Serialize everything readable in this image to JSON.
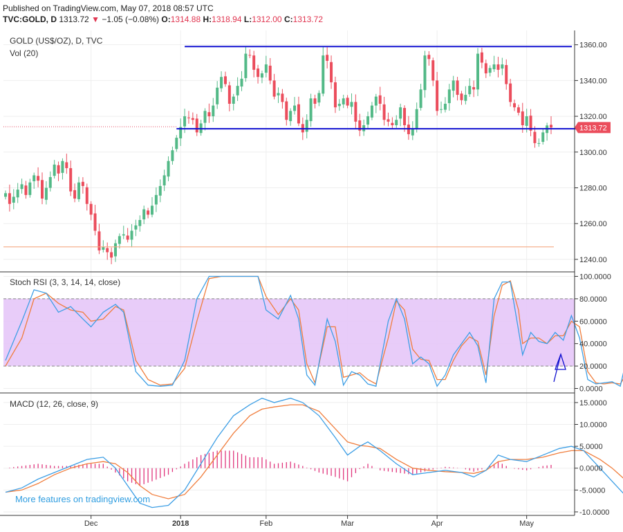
{
  "header": {
    "published": "Published on TradingView.com, May 07, 2018 08:57 UTC",
    "symbol": "TVC:GOLD, D",
    "last": "1313.72",
    "change": "−1.05 (−0.08%)",
    "o_label": "O:",
    "o": "1314.88",
    "h_label": "H:",
    "h": "1318.94",
    "l_label": "L:",
    "l": "1312.00",
    "c_label": "C:",
    "c": "1313.72"
  },
  "panes": {
    "price_title": "GOLD (US$/OZ), D, TVC",
    "volume_title": "Vol (20)",
    "stoch_title": "Stoch RSI (3, 3, 14, 14, close)",
    "macd_title": "MACD (12, 26, close, 9)"
  },
  "footer": "More features on tradingview.com",
  "colors": {
    "up": "#53b987",
    "down": "#eb4d5c",
    "trendline": "#1010d0",
    "stoch_k": "#3c9ee5",
    "stoch_d": "#f07d3c",
    "stoch_band": "#e6c6f8",
    "macd": "#3c9ee5",
    "signal": "#f07d3c",
    "hist": "#e0347c"
  },
  "chart_data": [
    {
      "type": "candlestick",
      "title": "GOLD (US$/OZ), D, TVC",
      "y_ticks": [
        "1360.00",
        "1340.00",
        "1320.00",
        "1300.00",
        "1280.00",
        "1260.00",
        "1240.00"
      ],
      "ylim": [
        1233,
        1368
      ],
      "last_price_label": "1313.72",
      "x_ticks": [
        "Dec",
        "2018",
        "Feb",
        "Mar",
        "Apr",
        "May"
      ],
      "closes": [
        1277,
        1271,
        1275,
        1279,
        1282,
        1276,
        1283,
        1287,
        1284,
        1274,
        1280,
        1286,
        1293,
        1288,
        1295,
        1291,
        1278,
        1274,
        1283,
        1281,
        1271,
        1265,
        1256,
        1245,
        1247,
        1244,
        1241,
        1249,
        1253,
        1254,
        1251,
        1256,
        1259,
        1262,
        1268,
        1265,
        1270,
        1276,
        1281,
        1287,
        1295,
        1301,
        1308,
        1314,
        1320,
        1319,
        1318,
        1311,
        1316,
        1323,
        1320,
        1326,
        1336,
        1342,
        1338,
        1327,
        1331,
        1337,
        1341,
        1355,
        1354,
        1346,
        1342,
        1344,
        1349,
        1340,
        1331,
        1333,
        1328,
        1318,
        1323,
        1326,
        1316,
        1311,
        1318,
        1330,
        1327,
        1333,
        1354,
        1351,
        1339,
        1325,
        1327,
        1330,
        1326,
        1328,
        1317,
        1312,
        1315,
        1320,
        1326,
        1331,
        1327,
        1318,
        1317,
        1315,
        1318,
        1325,
        1315,
        1310,
        1313,
        1324,
        1335,
        1354,
        1352,
        1340,
        1323,
        1324,
        1327,
        1335,
        1340,
        1332,
        1329,
        1332,
        1337,
        1335,
        1355,
        1350,
        1344,
        1347,
        1349,
        1346,
        1349,
        1338,
        1328,
        1325,
        1322,
        1315,
        1320,
        1312,
        1305,
        1305,
        1311,
        1314.88,
        1313.72
      ],
      "upper_resistance": 1359,
      "lower_support": 1313,
      "reference_level": 1247
    },
    {
      "type": "line",
      "title": "Stoch RSI (3, 3, 14, 14, close)",
      "y_ticks": [
        "100.0000",
        "80.0000",
        "60.0000",
        "40.0000",
        "20.0000",
        "0.0000"
      ],
      "ylim": [
        -4,
        104
      ],
      "band": [
        20,
        80
      ],
      "series": [
        {
          "name": "K",
          "points": [
            [
              0,
              25
            ],
            [
              4,
              60
            ],
            [
              7,
              88
            ],
            [
              10,
              85
            ],
            [
              13,
              68
            ],
            [
              16,
              73
            ],
            [
              19,
              62
            ],
            [
              21,
              55
            ],
            [
              24,
              68
            ],
            [
              27,
              75
            ],
            [
              29,
              68
            ],
            [
              32,
              15
            ],
            [
              35,
              3
            ],
            [
              38,
              2
            ],
            [
              41,
              3
            ],
            [
              44,
              25
            ],
            [
              47,
              80
            ],
            [
              50,
              100
            ],
            [
              53,
              100
            ],
            [
              56,
              100
            ],
            [
              59,
              100
            ],
            [
              62,
              100
            ],
            [
              64,
              70
            ],
            [
              67,
              62
            ],
            [
              70,
              83
            ],
            [
              72,
              62
            ],
            [
              74,
              12
            ],
            [
              76,
              3
            ],
            [
              79,
              62
            ],
            [
              81,
              42
            ],
            [
              83,
              3
            ],
            [
              85,
              15
            ],
            [
              87,
              12
            ],
            [
              89,
              4
            ],
            [
              91,
              2
            ],
            [
              94,
              60
            ],
            [
              96,
              80
            ],
            [
              98,
              62
            ],
            [
              100,
              22
            ],
            [
              102,
              28
            ],
            [
              104,
              22
            ],
            [
              106,
              2
            ],
            [
              108,
              12
            ],
            [
              110,
              30
            ],
            [
              112,
              40
            ],
            [
              114,
              50
            ],
            [
              116,
              38
            ],
            [
              118,
              5
            ],
            [
              120,
              80
            ],
            [
              122,
              95
            ],
            [
              124,
              95
            ],
            [
              126,
              52
            ],
            [
              127,
              30
            ],
            [
              129,
              50
            ],
            [
              131,
              42
            ],
            [
              133,
              40
            ],
            [
              135,
              50
            ],
            [
              137,
              43
            ],
            [
              139,
              65
            ],
            [
              141,
              45
            ],
            [
              143,
              8
            ],
            [
              145,
              4
            ],
            [
              147,
              5
            ],
            [
              149,
              6
            ],
            [
              151,
              2
            ],
            [
              152,
              18
            ],
            [
              154,
              30
            ]
          ]
        },
        {
          "name": "D",
          "points": [
            [
              0,
              20
            ],
            [
              4,
              45
            ],
            [
              7,
              80
            ],
            [
              10,
              85
            ],
            [
              13,
              76
            ],
            [
              16,
              70
            ],
            [
              19,
              68
            ],
            [
              21,
              60
            ],
            [
              24,
              62
            ],
            [
              27,
              73
            ],
            [
              29,
              70
            ],
            [
              32,
              25
            ],
            [
              35,
              8
            ],
            [
              38,
              3
            ],
            [
              41,
              4
            ],
            [
              44,
              18
            ],
            [
              47,
              60
            ],
            [
              50,
              98
            ],
            [
              53,
              100
            ],
            [
              56,
              100
            ],
            [
              59,
              100
            ],
            [
              62,
              100
            ],
            [
              64,
              82
            ],
            [
              67,
              66
            ],
            [
              70,
              80
            ],
            [
              72,
              70
            ],
            [
              74,
              22
            ],
            [
              76,
              5
            ],
            [
              79,
              55
            ],
            [
              81,
              55
            ],
            [
              83,
              10
            ],
            [
              85,
              12
            ],
            [
              87,
              14
            ],
            [
              89,
              8
            ],
            [
              91,
              4
            ],
            [
              94,
              45
            ],
            [
              96,
              78
            ],
            [
              98,
              70
            ],
            [
              100,
              35
            ],
            [
              102,
              26
            ],
            [
              104,
              25
            ],
            [
              106,
              8
            ],
            [
              108,
              8
            ],
            [
              110,
              25
            ],
            [
              112,
              38
            ],
            [
              114,
              46
            ],
            [
              116,
              42
            ],
            [
              118,
              12
            ],
            [
              120,
              65
            ],
            [
              122,
              92
            ],
            [
              124,
              96
            ],
            [
              126,
              70
            ],
            [
              127,
              40
            ],
            [
              129,
              45
            ],
            [
              131,
              45
            ],
            [
              133,
              40
            ],
            [
              135,
              47
            ],
            [
              137,
              47
            ],
            [
              139,
              60
            ],
            [
              141,
              55
            ],
            [
              143,
              15
            ],
            [
              145,
              5
            ],
            [
              147,
              4
            ],
            [
              149,
              5
            ],
            [
              151,
              4
            ],
            [
              152,
              10
            ],
            [
              154,
              22
            ]
          ]
        }
      ]
    },
    {
      "type": "line+bar",
      "title": "MACD (12, 26, close, 9)",
      "y_ticks": [
        "15.0000",
        "10.0000",
        "5.0000",
        "0.0000",
        "-5.0000",
        "-10.0000"
      ],
      "ylim": [
        -10.8,
        17.2
      ],
      "series": [
        {
          "name": "MACD",
          "points": [
            [
              0,
              -5.5
            ],
            [
              4,
              -4.5
            ],
            [
              8,
              -2.5
            ],
            [
              12,
              -1
            ],
            [
              16,
              0.5
            ],
            [
              20,
              2
            ],
            [
              24,
              2.5
            ],
            [
              27,
              0
            ],
            [
              30,
              -4
            ],
            [
              33,
              -8
            ],
            [
              36,
              -9
            ],
            [
              40,
              -8.5
            ],
            [
              44,
              -5
            ],
            [
              48,
              1
            ],
            [
              52,
              7
            ],
            [
              56,
              12
            ],
            [
              60,
              14.5
            ],
            [
              63,
              16
            ],
            [
              66,
              15
            ],
            [
              70,
              16
            ],
            [
              73,
              15
            ],
            [
              77,
              12
            ],
            [
              81,
              7
            ],
            [
              84,
              3
            ],
            [
              87,
              5
            ],
            [
              89,
              6
            ],
            [
              92,
              4
            ],
            [
              96,
              1
            ],
            [
              100,
              -1.5
            ],
            [
              104,
              -1
            ],
            [
              108,
              -0.5
            ],
            [
              112,
              -1
            ],
            [
              115,
              -2
            ],
            [
              118,
              -0.5
            ],
            [
              121,
              3
            ],
            [
              124,
              2
            ],
            [
              128,
              1.5
            ],
            [
              132,
              3
            ],
            [
              136,
              4.5
            ],
            [
              139,
              5
            ],
            [
              142,
              4
            ],
            [
              146,
              0
            ],
            [
              149,
              -3
            ],
            [
              152,
              -6
            ],
            [
              155,
              -6
            ]
          ]
        },
        {
          "name": "Signal",
          "points": [
            [
              0,
              -5.5
            ],
            [
              4,
              -5
            ],
            [
              8,
              -3.5
            ],
            [
              12,
              -1.5
            ],
            [
              16,
              0
            ],
            [
              20,
              1
            ],
            [
              24,
              1.5
            ],
            [
              27,
              1
            ],
            [
              30,
              -1
            ],
            [
              33,
              -4
            ],
            [
              36,
              -6
            ],
            [
              40,
              -7
            ],
            [
              44,
              -6
            ],
            [
              48,
              -2
            ],
            [
              52,
              3
            ],
            [
              56,
              8
            ],
            [
              60,
              12
            ],
            [
              63,
              13.5
            ],
            [
              66,
              14
            ],
            [
              70,
              14.5
            ],
            [
              73,
              14.5
            ],
            [
              77,
              13
            ],
            [
              81,
              9
            ],
            [
              84,
              6
            ],
            [
              87,
              5.2
            ],
            [
              89,
              5
            ],
            [
              92,
              4.5
            ],
            [
              96,
              2
            ],
            [
              100,
              0
            ],
            [
              104,
              -0.5
            ],
            [
              108,
              -0.8
            ],
            [
              112,
              -1
            ],
            [
              115,
              -1.2
            ],
            [
              118,
              -0.5
            ],
            [
              121,
              1.5
            ],
            [
              124,
              2
            ],
            [
              128,
              2
            ],
            [
              132,
              2.5
            ],
            [
              136,
              3.5
            ],
            [
              139,
              4
            ],
            [
              142,
              4
            ],
            [
              146,
              2
            ],
            [
              149,
              0
            ],
            [
              152,
              -2.5
            ],
            [
              155,
              -3.5
            ]
          ]
        }
      ]
    }
  ]
}
